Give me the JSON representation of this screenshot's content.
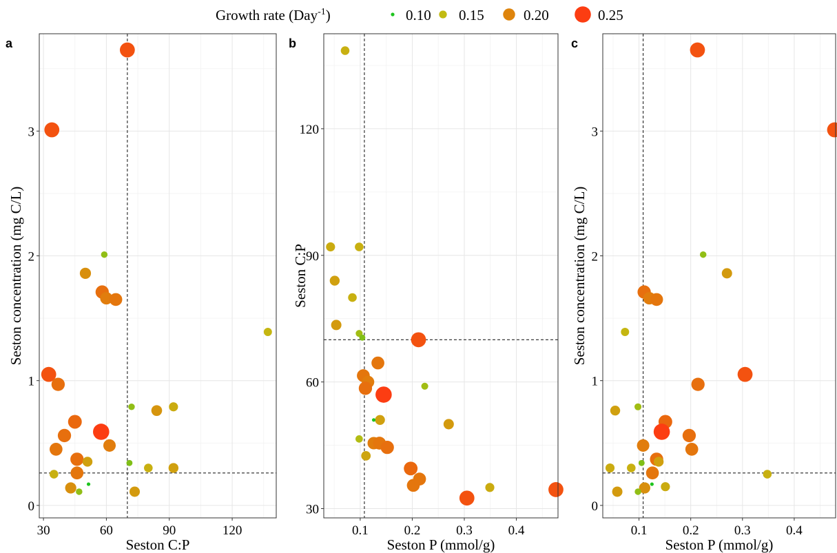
{
  "legend": {
    "title": "Growth rate (Day",
    "title_sup": "-1",
    "title_end": ")",
    "items": [
      {
        "label": "0.10",
        "value": 0.1,
        "color": "#1ec41e"
      },
      {
        "label": "0.15",
        "value": 0.15,
        "color": "#c2bb12"
      },
      {
        "label": "0.20",
        "value": 0.2,
        "color": "#de840c"
      },
      {
        "label": "0.25",
        "value": 0.25,
        "color": "#fc3d12"
      }
    ]
  },
  "chart_data": [
    {
      "type": "scatter",
      "panel": "a",
      "xlabel": "Seston C:P",
      "ylabel": "Seston concentration (mg C/L)",
      "xlim": [
        28,
        141
      ],
      "ylim": [
        -0.1,
        3.78
      ],
      "xticks": [
        30,
        60,
        90,
        120
      ],
      "xtick_labels": [
        "30",
        "60",
        "90",
        "120"
      ],
      "yticks": [
        0,
        1,
        2,
        3
      ],
      "ytick_labels": [
        "0",
        "1",
        "2",
        "3"
      ],
      "grid": true,
      "vline": 70,
      "hline": 0.26,
      "points": [
        {
          "x": 70.0,
          "y": 3.65,
          "g": 0.235
        },
        {
          "x": 34.0,
          "y": 3.01,
          "g": 0.235
        },
        {
          "x": 59.0,
          "y": 2.01,
          "g": 0.135
        },
        {
          "x": 50.0,
          "y": 1.86,
          "g": 0.19
        },
        {
          "x": 58.0,
          "y": 1.71,
          "g": 0.215
        },
        {
          "x": 60.0,
          "y": 1.66,
          "g": 0.205
        },
        {
          "x": 64.5,
          "y": 1.65,
          "g": 0.21
        },
        {
          "x": 137.0,
          "y": 1.39,
          "g": 0.155
        },
        {
          "x": 32.5,
          "y": 1.05,
          "g": 0.235
        },
        {
          "x": 37.0,
          "y": 0.97,
          "g": 0.215
        },
        {
          "x": 72.0,
          "y": 0.79,
          "g": 0.135
        },
        {
          "x": 84.0,
          "y": 0.76,
          "g": 0.185
        },
        {
          "x": 92.0,
          "y": 0.79,
          "g": 0.165
        },
        {
          "x": 45.0,
          "y": 0.67,
          "g": 0.22
        },
        {
          "x": 57.5,
          "y": 0.59,
          "g": 0.25
        },
        {
          "x": 40.0,
          "y": 0.56,
          "g": 0.215
        },
        {
          "x": 61.5,
          "y": 0.48,
          "g": 0.205
        },
        {
          "x": 36.0,
          "y": 0.45,
          "g": 0.21
        },
        {
          "x": 46.0,
          "y": 0.37,
          "g": 0.215
        },
        {
          "x": 51.0,
          "y": 0.35,
          "g": 0.175
        },
        {
          "x": 71.0,
          "y": 0.34,
          "g": 0.13
        },
        {
          "x": 80.0,
          "y": 0.3,
          "g": 0.16
        },
        {
          "x": 92.0,
          "y": 0.3,
          "g": 0.175
        },
        {
          "x": 35.0,
          "y": 0.25,
          "g": 0.16
        },
        {
          "x": 46.0,
          "y": 0.26,
          "g": 0.21
        },
        {
          "x": 43.0,
          "y": 0.14,
          "g": 0.19
        },
        {
          "x": 47.0,
          "y": 0.11,
          "g": 0.135
        },
        {
          "x": 51.5,
          "y": 0.17,
          "g": 0.1
        },
        {
          "x": 73.5,
          "y": 0.11,
          "g": 0.18
        }
      ]
    },
    {
      "type": "scatter",
      "panel": "b",
      "xlabel": "Seston P (mmol/g)",
      "ylabel": "Seston C:P",
      "xlim": [
        0.03,
        0.48
      ],
      "ylim": [
        27.8,
        142.5
      ],
      "xticks": [
        0.1,
        0.2,
        0.3,
        0.4
      ],
      "xtick_labels": [
        "0.1",
        "0.2",
        "0.3",
        "0.4"
      ],
      "yticks": [
        30,
        60,
        90,
        120
      ],
      "ytick_labels": [
        "30",
        "60",
        "90",
        "120"
      ],
      "grid": true,
      "vline": 0.108,
      "hline": 70,
      "points": [
        {
          "x": 0.071,
          "y": 138.5,
          "g": 0.16
        },
        {
          "x": 0.043,
          "y": 92.0,
          "g": 0.165
        },
        {
          "x": 0.098,
          "y": 92.0,
          "g": 0.16
        },
        {
          "x": 0.051,
          "y": 84.0,
          "g": 0.175
        },
        {
          "x": 0.085,
          "y": 80.0,
          "g": 0.16
        },
        {
          "x": 0.054,
          "y": 73.5,
          "g": 0.18
        },
        {
          "x": 0.098,
          "y": 71.5,
          "g": 0.14
        },
        {
          "x": 0.104,
          "y": 70.5,
          "g": 0.13
        },
        {
          "x": 0.212,
          "y": 70.0,
          "g": 0.235
        },
        {
          "x": 0.134,
          "y": 64.5,
          "g": 0.21
        },
        {
          "x": 0.106,
          "y": 61.5,
          "g": 0.21
        },
        {
          "x": 0.115,
          "y": 60.0,
          "g": 0.205
        },
        {
          "x": 0.11,
          "y": 58.5,
          "g": 0.215
        },
        {
          "x": 0.145,
          "y": 57.0,
          "g": 0.25
        },
        {
          "x": 0.224,
          "y": 59.0,
          "g": 0.14
        },
        {
          "x": 0.138,
          "y": 51.0,
          "g": 0.175
        },
        {
          "x": 0.126,
          "y": 51.0,
          "g": 0.1
        },
        {
          "x": 0.27,
          "y": 50.0,
          "g": 0.18
        },
        {
          "x": 0.098,
          "y": 46.5,
          "g": 0.145
        },
        {
          "x": 0.126,
          "y": 45.5,
          "g": 0.205
        },
        {
          "x": 0.137,
          "y": 45.5,
          "g": 0.21
        },
        {
          "x": 0.15,
          "y": 44.0,
          "g": 0.16
        },
        {
          "x": 0.152,
          "y": 44.5,
          "g": 0.215
        },
        {
          "x": 0.111,
          "y": 42.5,
          "g": 0.17
        },
        {
          "x": 0.197,
          "y": 39.5,
          "g": 0.22
        },
        {
          "x": 0.214,
          "y": 37.0,
          "g": 0.21
        },
        {
          "x": 0.202,
          "y": 35.5,
          "g": 0.21
        },
        {
          "x": 0.349,
          "y": 35.0,
          "g": 0.165
        },
        {
          "x": 0.305,
          "y": 32.5,
          "g": 0.235
        },
        {
          "x": 0.476,
          "y": 34.5,
          "g": 0.235
        }
      ]
    },
    {
      "type": "scatter",
      "panel": "c",
      "xlabel": "Seston P (mmol/g)",
      "ylabel": "Seston concentration (mg C/L)",
      "xlim": [
        0.03,
        0.48
      ],
      "ylim": [
        -0.1,
        3.78
      ],
      "xticks": [
        0.1,
        0.2,
        0.3,
        0.4
      ],
      "xtick_labels": [
        "0.1",
        "0.2",
        "0.3",
        "0.4"
      ],
      "yticks": [
        0,
        1,
        2,
        3
      ],
      "ytick_labels": [
        "0",
        "1",
        "2",
        "3"
      ],
      "grid": true,
      "vline": 0.108,
      "hline": 0.26,
      "points": [
        {
          "x": 0.213,
          "y": 3.65,
          "g": 0.235
        },
        {
          "x": 0.478,
          "y": 3.01,
          "g": 0.235
        },
        {
          "x": 0.224,
          "y": 2.01,
          "g": 0.135
        },
        {
          "x": 0.27,
          "y": 1.86,
          "g": 0.18
        },
        {
          "x": 0.11,
          "y": 1.71,
          "g": 0.215
        },
        {
          "x": 0.12,
          "y": 1.66,
          "g": 0.205
        },
        {
          "x": 0.134,
          "y": 1.65,
          "g": 0.21
        },
        {
          "x": 0.073,
          "y": 1.39,
          "g": 0.155
        },
        {
          "x": 0.305,
          "y": 1.05,
          "g": 0.235
        },
        {
          "x": 0.214,
          "y": 0.97,
          "g": 0.215
        },
        {
          "x": 0.098,
          "y": 0.79,
          "g": 0.14
        },
        {
          "x": 0.054,
          "y": 0.76,
          "g": 0.175
        },
        {
          "x": 0.151,
          "y": 0.67,
          "g": 0.22
        },
        {
          "x": 0.144,
          "y": 0.59,
          "g": 0.25
        },
        {
          "x": 0.197,
          "y": 0.56,
          "g": 0.215
        },
        {
          "x": 0.108,
          "y": 0.48,
          "g": 0.205
        },
        {
          "x": 0.202,
          "y": 0.45,
          "g": 0.21
        },
        {
          "x": 0.134,
          "y": 0.37,
          "g": 0.215
        },
        {
          "x": 0.138,
          "y": 0.35,
          "g": 0.175
        },
        {
          "x": 0.105,
          "y": 0.34,
          "g": 0.13
        },
        {
          "x": 0.044,
          "y": 0.3,
          "g": 0.165
        },
        {
          "x": 0.085,
          "y": 0.3,
          "g": 0.16
        },
        {
          "x": 0.126,
          "y": 0.26,
          "g": 0.21
        },
        {
          "x": 0.348,
          "y": 0.25,
          "g": 0.16
        },
        {
          "x": 0.111,
          "y": 0.14,
          "g": 0.19
        },
        {
          "x": 0.151,
          "y": 0.15,
          "g": 0.165
        },
        {
          "x": 0.098,
          "y": 0.11,
          "g": 0.135
        },
        {
          "x": 0.058,
          "y": 0.11,
          "g": 0.18
        },
        {
          "x": 0.125,
          "y": 0.17,
          "g": 0.1
        }
      ]
    }
  ]
}
